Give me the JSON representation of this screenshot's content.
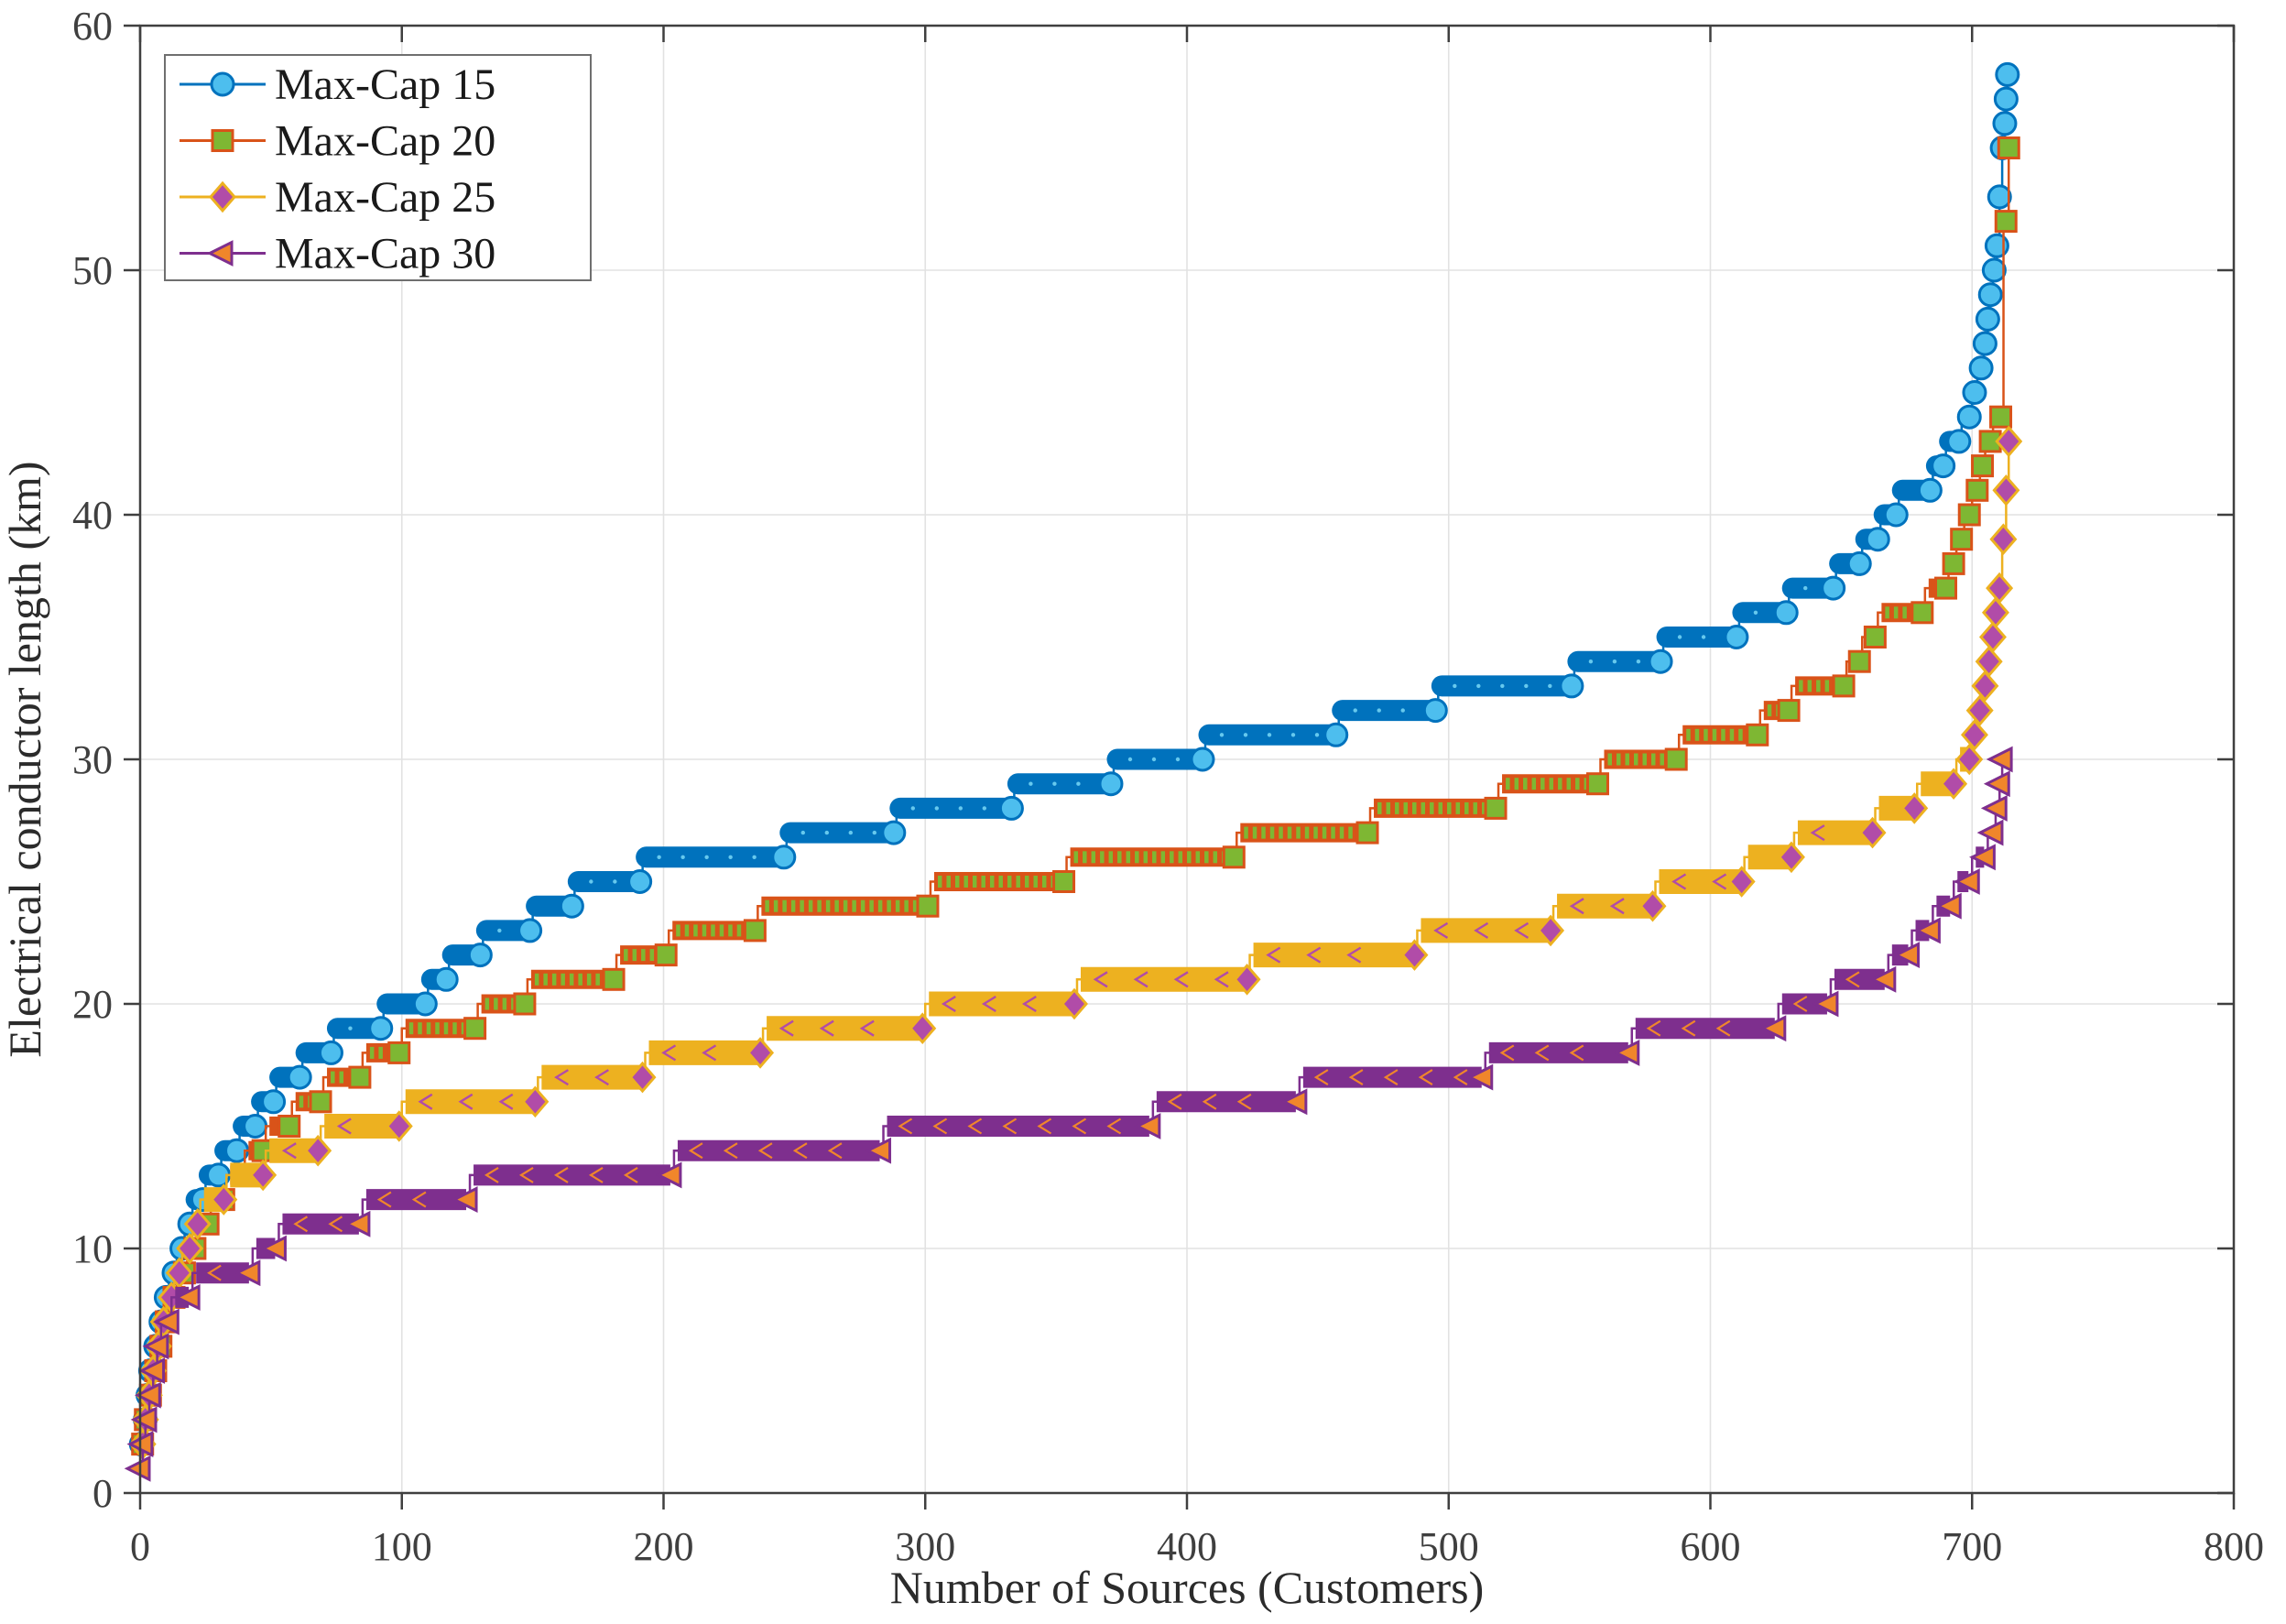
{
  "figure": {
    "background": "#ffffff",
    "frame_color": "#3f3f3f",
    "grid_color": "#e2e2e2",
    "tick_label_color": "#3f3f3f",
    "label_color": "#2b2b2b"
  },
  "legend": {
    "position": "top-left",
    "border_color": "#6f6f6f",
    "background": "#ffffff"
  },
  "chart_data": {
    "type": "line",
    "title": "",
    "xlabel": "Number of Sources (Customers)",
    "ylabel": "Electrical conductor length (km)",
    "xlim": [
      0,
      800
    ],
    "ylim": [
      0,
      60
    ],
    "xticks": [
      0,
      100,
      200,
      300,
      400,
      500,
      600,
      700,
      800
    ],
    "yticks": [
      0,
      10,
      20,
      30,
      40,
      50,
      60
    ],
    "grid": true,
    "legend_position": "top-left",
    "note": "Each series is a sorted staircase; steps[i]=[x_start,km_level], plateau runs to next x_start, last to end_x",
    "series": [
      {
        "name": "Max-Cap 15",
        "marker": "circle",
        "line_color": "#0072BD",
        "marker_edge_color": "#0072BD",
        "marker_face_color": "#4DBEEE",
        "end_x": 714.5,
        "steps": [
          [
            0,
            2
          ],
          [
            1.5,
            3
          ],
          [
            3,
            4
          ],
          [
            4,
            5
          ],
          [
            5,
            6
          ],
          [
            7,
            7
          ],
          [
            9,
            8
          ],
          [
            11,
            9
          ],
          [
            14,
            10
          ],
          [
            17,
            11
          ],
          [
            20,
            12
          ],
          [
            25,
            13
          ],
          [
            31,
            14
          ],
          [
            38,
            15
          ],
          [
            45,
            16
          ],
          [
            52,
            17
          ],
          [
            62,
            18
          ],
          [
            74,
            19
          ],
          [
            93,
            20
          ],
          [
            110,
            21
          ],
          [
            118,
            22
          ],
          [
            131,
            23
          ],
          [
            150,
            24
          ],
          [
            166,
            25
          ],
          [
            192,
            26
          ],
          [
            247,
            27
          ],
          [
            289,
            28
          ],
          [
            334,
            29
          ],
          [
            372,
            30
          ],
          [
            407,
            31
          ],
          [
            458,
            32
          ],
          [
            496,
            33
          ],
          [
            548,
            34
          ],
          [
            582,
            35
          ],
          [
            611,
            36
          ],
          [
            630,
            37
          ],
          [
            648,
            38
          ],
          [
            658,
            39
          ],
          [
            665,
            40
          ],
          [
            672,
            41
          ],
          [
            685,
            42
          ],
          [
            690,
            43
          ],
          [
            696,
            44
          ],
          [
            700,
            45
          ],
          [
            702,
            46
          ],
          [
            704.5,
            47
          ],
          [
            706,
            48
          ],
          [
            707,
            49
          ],
          [
            708,
            50
          ],
          [
            709.5,
            51
          ],
          [
            710.5,
            53
          ],
          [
            711.5,
            55
          ],
          [
            712.5,
            56
          ],
          [
            713,
            57
          ],
          [
            713.5,
            58
          ]
        ]
      },
      {
        "name": "Max-Cap 20",
        "marker": "square",
        "line_color": "#D95319",
        "marker_edge_color": "#D95319",
        "marker_face_color": "#7EB733",
        "end_x": 715,
        "steps": [
          [
            0,
            2
          ],
          [
            2,
            3
          ],
          [
            3,
            4
          ],
          [
            5,
            5
          ],
          [
            7,
            6
          ],
          [
            9,
            7
          ],
          [
            11,
            8
          ],
          [
            14,
            9
          ],
          [
            18,
            10
          ],
          [
            22,
            11
          ],
          [
            27,
            12
          ],
          [
            33,
            13
          ],
          [
            40,
            14
          ],
          [
            48,
            15
          ],
          [
            58,
            16
          ],
          [
            70,
            17
          ],
          [
            85,
            18
          ],
          [
            100,
            19
          ],
          [
            129,
            20
          ],
          [
            148,
            21
          ],
          [
            182,
            22
          ],
          [
            202,
            23
          ],
          [
            236,
            24
          ],
          [
            302,
            25
          ],
          [
            354,
            26
          ],
          [
            419,
            27
          ],
          [
            470,
            28
          ],
          [
            519,
            29
          ],
          [
            558,
            30
          ],
          [
            588,
            31
          ],
          [
            619,
            32
          ],
          [
            631,
            33
          ],
          [
            652,
            34
          ],
          [
            658,
            35
          ],
          [
            664,
            36
          ],
          [
            682,
            37
          ],
          [
            691,
            38
          ],
          [
            694,
            39
          ],
          [
            697,
            40
          ],
          [
            700,
            41
          ],
          [
            703,
            42
          ],
          [
            705,
            43
          ],
          [
            708,
            44
          ],
          [
            712,
            52
          ],
          [
            714,
            55
          ]
        ]
      },
      {
        "name": "Max-Cap 25",
        "marker": "diamond",
        "line_color": "#EDB120",
        "marker_edge_color": "#EDB120",
        "marker_face_color": "#B14CA8",
        "end_x": 715,
        "steps": [
          [
            0,
            2
          ],
          [
            2,
            3
          ],
          [
            3,
            4
          ],
          [
            4.5,
            5
          ],
          [
            6,
            6
          ],
          [
            8,
            7
          ],
          [
            10,
            8
          ],
          [
            13,
            9
          ],
          [
            16,
            10
          ],
          [
            20,
            11
          ],
          [
            23,
            12
          ],
          [
            33,
            13
          ],
          [
            48,
            14
          ],
          [
            69,
            15
          ],
          [
            100,
            16
          ],
          [
            152,
            17
          ],
          [
            193,
            18
          ],
          [
            238,
            19
          ],
          [
            300,
            20
          ],
          [
            358,
            21
          ],
          [
            424,
            22
          ],
          [
            488,
            23
          ],
          [
            540,
            24
          ],
          [
            579,
            25
          ],
          [
            613,
            26
          ],
          [
            632,
            27
          ],
          [
            663,
            28
          ],
          [
            679,
            29
          ],
          [
            694,
            30
          ],
          [
            700,
            31
          ],
          [
            702,
            32
          ],
          [
            704,
            33
          ],
          [
            706,
            34
          ],
          [
            707.5,
            35
          ],
          [
            709,
            36
          ],
          [
            710,
            37
          ],
          [
            711.5,
            39
          ],
          [
            713,
            41
          ],
          [
            714,
            43
          ]
        ]
      },
      {
        "name": "Max-Cap 30",
        "marker": "triangle-left",
        "line_color": "#7E2F8E",
        "marker_edge_color": "#7E2F8E",
        "marker_face_color": "#F0862B",
        "end_x": 712.5,
        "steps": [
          [
            0,
            1
          ],
          [
            1,
            2
          ],
          [
            2,
            3
          ],
          [
            3.5,
            4
          ],
          [
            5,
            5
          ],
          [
            6.5,
            6
          ],
          [
            8,
            7
          ],
          [
            12,
            8
          ],
          [
            20,
            9
          ],
          [
            43,
            10
          ],
          [
            53,
            11
          ],
          [
            85,
            12
          ],
          [
            126,
            13
          ],
          [
            204,
            14
          ],
          [
            284,
            15
          ],
          [
            387,
            16
          ],
          [
            443,
            17
          ],
          [
            514,
            18
          ],
          [
            570,
            19
          ],
          [
            626,
            20
          ],
          [
            646,
            21
          ],
          [
            668,
            22
          ],
          [
            677,
            23
          ],
          [
            685,
            24
          ],
          [
            693,
            25
          ],
          [
            700,
            26
          ],
          [
            706,
            27
          ],
          [
            709,
            28
          ],
          [
            710.5,
            29
          ],
          [
            711.5,
            30
          ]
        ]
      }
    ]
  }
}
